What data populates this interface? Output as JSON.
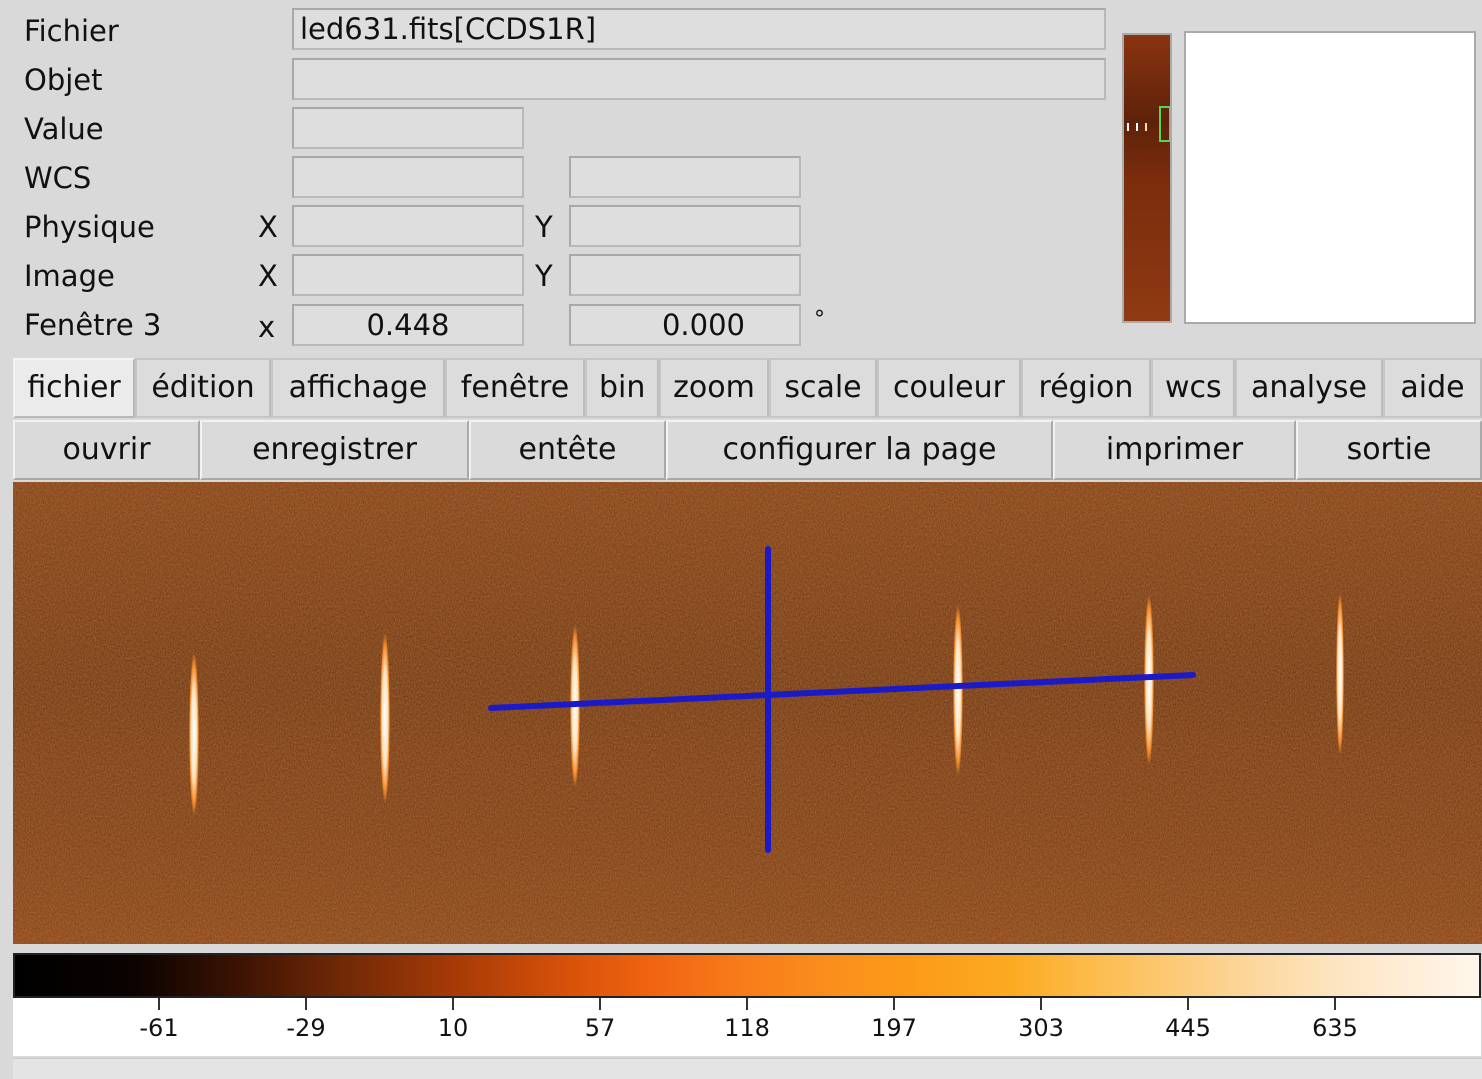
{
  "info_panel": {
    "file_label": "Fichier",
    "file_value": "led631.fits[CCDS1R]",
    "object_label": "Objet",
    "object_value": "",
    "value_label": "Value",
    "value_value": "",
    "wcs_label": "WCS",
    "wcs_value_1": "",
    "wcs_value_2": "",
    "physical_label": "Physique",
    "physical_x_axis": "X",
    "physical_y_axis": "Y",
    "physical_x": "",
    "physical_y": "",
    "image_label": "Image",
    "image_x_axis": "X",
    "image_y_axis": "Y",
    "image_x": "",
    "image_y": "",
    "frame_label": "Fenêtre 3",
    "frame_axis": "x",
    "frame_zoom": "0.448",
    "frame_angle": "0.000",
    "angle_unit": "°"
  },
  "menubar": [
    "fichier",
    "édition",
    "affichage",
    "fenêtre",
    "bin",
    "zoom",
    "scale",
    "couleur",
    "région",
    "wcs",
    "analyse",
    "aide"
  ],
  "buttonbar": [
    "ouvrir",
    "enregistrer",
    "entête",
    "configurer la page",
    "imprimer",
    "sortie"
  ],
  "colorbar": {
    "ticks": [
      "-61",
      "-29",
      "10",
      "57",
      "118",
      "197",
      "303",
      "445",
      "635"
    ],
    "colormap_colors": [
      "#000000",
      "#3a1203",
      "#a63a06",
      "#f26512",
      "#fc9c18",
      "#fcd18c",
      "#fff6ec"
    ]
  },
  "image": {
    "background_color": "#7c2e0c",
    "cross_color": "#1a1ac8",
    "line_color": "#ffffff"
  }
}
